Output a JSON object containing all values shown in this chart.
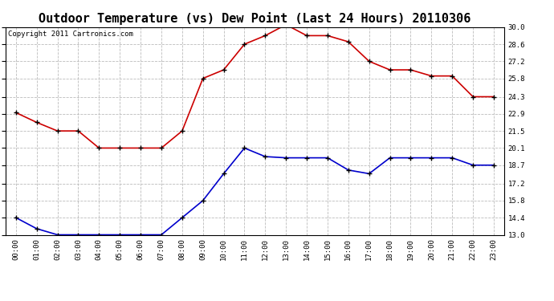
{
  "title": "Outdoor Temperature (vs) Dew Point (Last 24 Hours) 20110306",
  "copyright_text": "Copyright 2011 Cartronics.com",
  "x_labels": [
    "00:00",
    "01:00",
    "02:00",
    "03:00",
    "04:00",
    "05:00",
    "06:00",
    "07:00",
    "08:00",
    "09:00",
    "10:00",
    "11:00",
    "12:00",
    "13:00",
    "14:00",
    "15:00",
    "16:00",
    "17:00",
    "18:00",
    "19:00",
    "20:00",
    "21:00",
    "22:00",
    "23:00"
  ],
  "temp_red": [
    23.0,
    22.2,
    21.5,
    21.5,
    20.1,
    20.1,
    20.1,
    20.1,
    21.5,
    25.8,
    26.5,
    28.6,
    29.3,
    30.2,
    29.3,
    29.3,
    28.8,
    27.2,
    26.5,
    26.5,
    26.0,
    26.0,
    24.3,
    24.3
  ],
  "temp_blue": [
    14.4,
    13.5,
    13.0,
    13.0,
    13.0,
    13.0,
    13.0,
    13.0,
    14.4,
    15.8,
    18.0,
    20.1,
    19.4,
    19.3,
    19.3,
    19.3,
    18.3,
    18.0,
    19.3,
    19.3,
    19.3,
    19.3,
    18.7,
    18.7
  ],
  "ylim": [
    13.0,
    30.0
  ],
  "yticks": [
    13.0,
    14.4,
    15.8,
    17.2,
    18.7,
    20.1,
    21.5,
    22.9,
    24.3,
    25.8,
    27.2,
    28.6,
    30.0
  ],
  "red_color": "#cc0000",
  "blue_color": "#0000cc",
  "bg_color": "#ffffff",
  "grid_color": "#bbbbbb",
  "title_fontsize": 11,
  "copyright_fontsize": 6.5,
  "tick_fontsize": 6.5
}
